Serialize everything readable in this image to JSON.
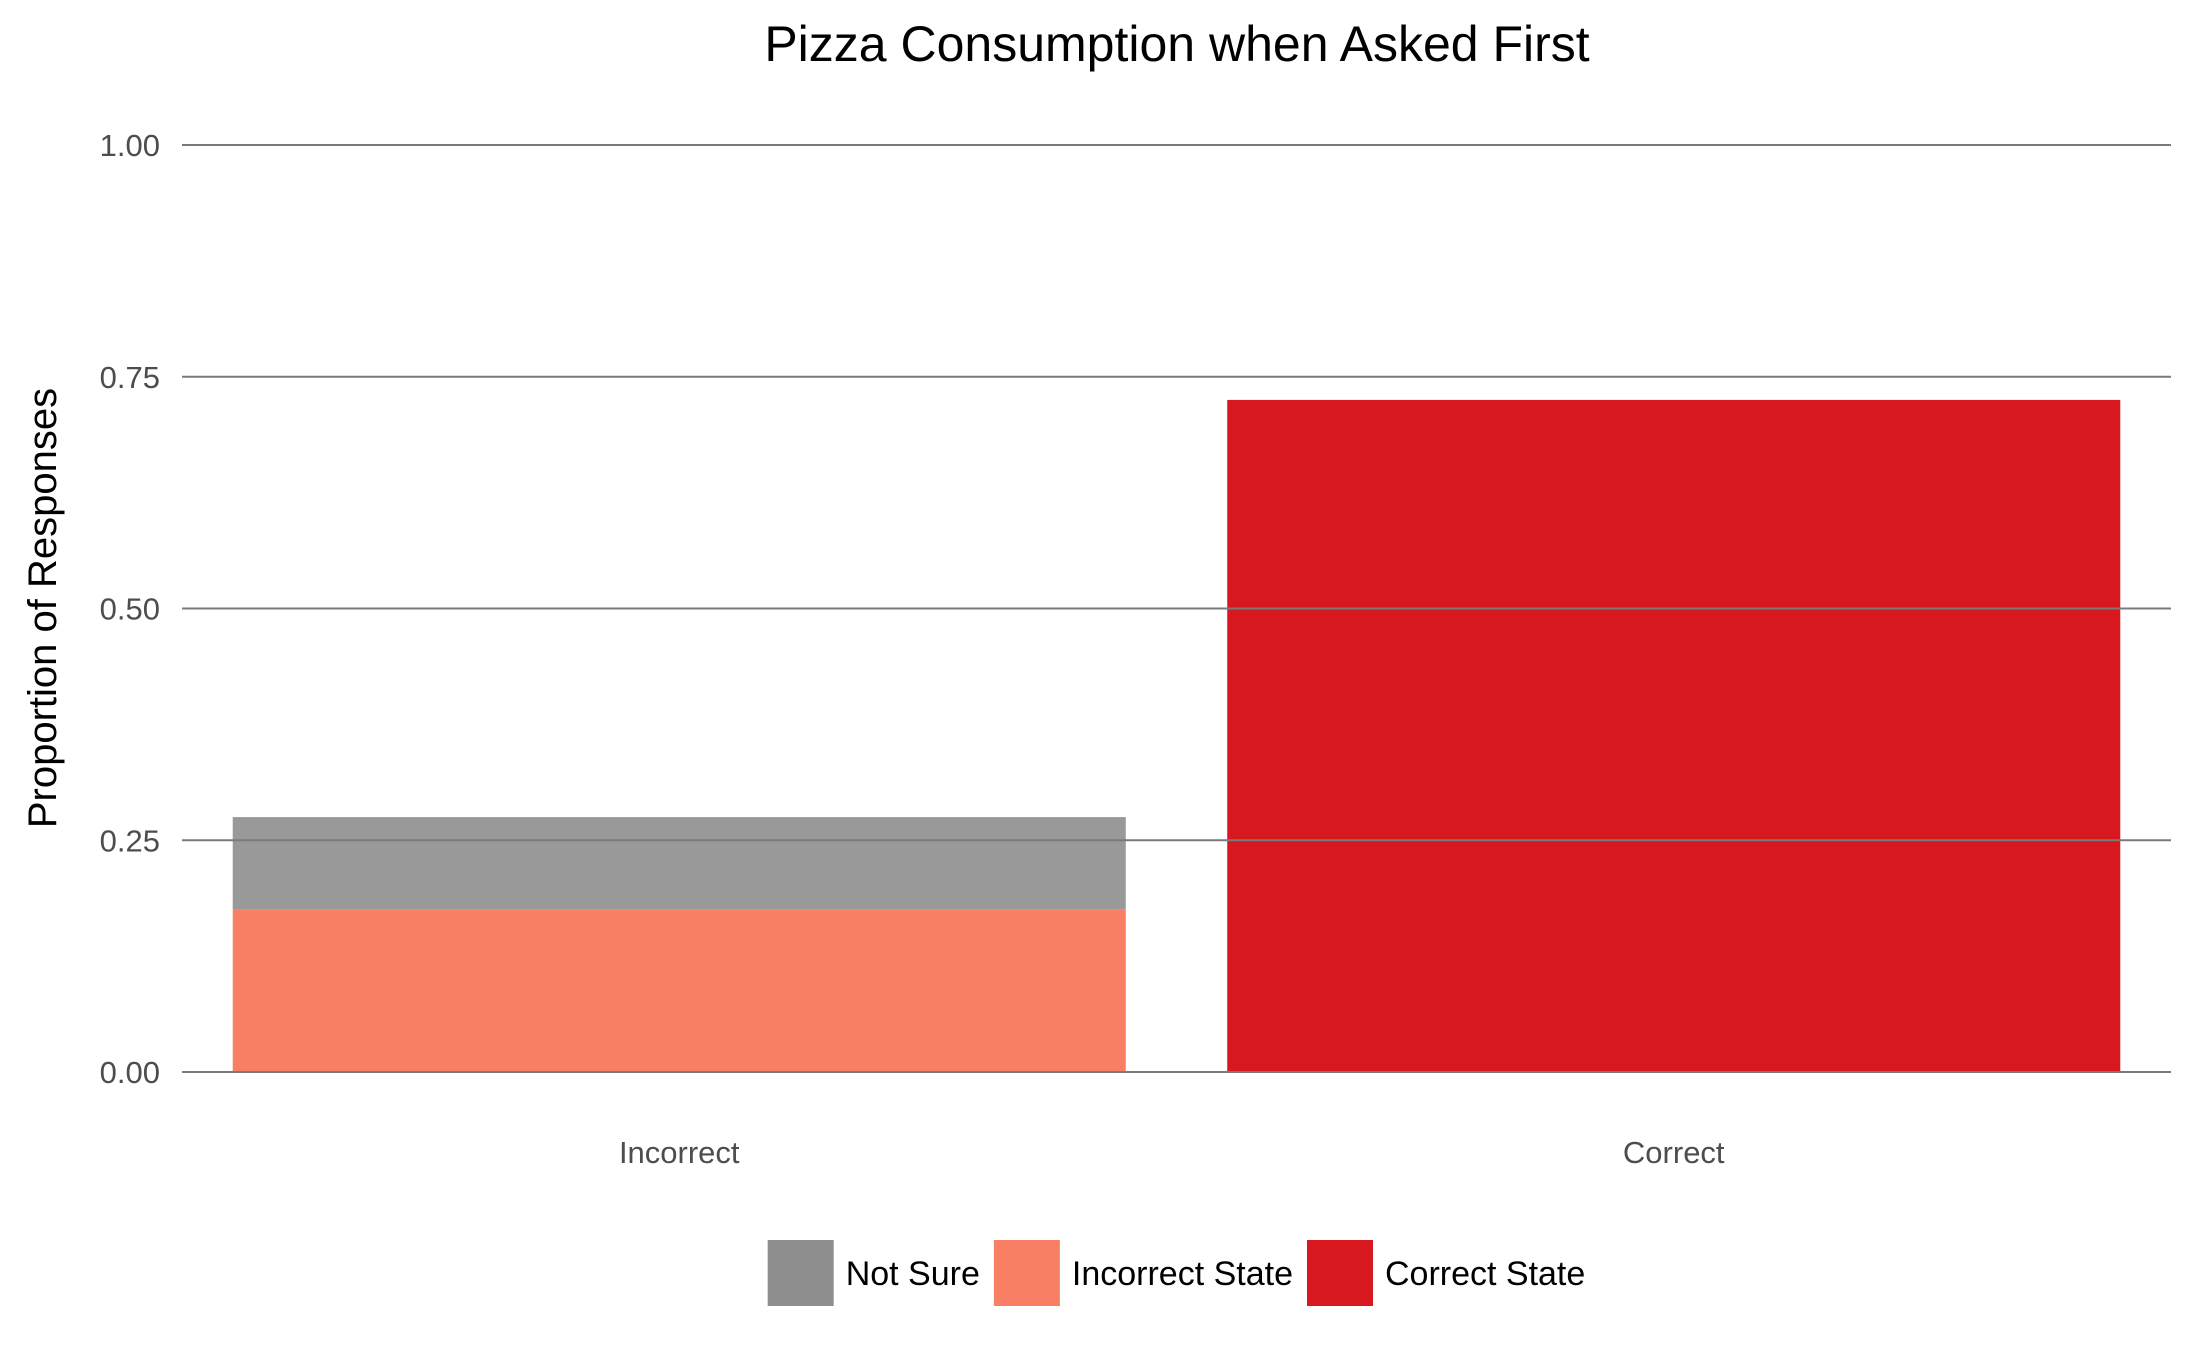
{
  "chart_data": {
    "type": "bar",
    "stacked": true,
    "title": "Pizza Consumption when Asked First",
    "xlabel": "",
    "ylabel": "Proportion of Responses",
    "categories": [
      "Incorrect",
      "Correct"
    ],
    "series": [
      {
        "name": "Incorrect State",
        "color": "#f87f63",
        "values": [
          0.175,
          0
        ]
      },
      {
        "name": "Not Sure",
        "color": "#999999",
        "values": [
          0.1,
          0
        ]
      },
      {
        "name": "Correct State",
        "color": "#d7191f",
        "values": [
          0,
          0.725
        ]
      }
    ],
    "ylim": [
      0,
      1
    ],
    "yticks": [
      0,
      0.25,
      0.5,
      0.75,
      1
    ],
    "ytick_labels": [
      "0.00",
      "0.25",
      "0.50",
      "0.75",
      "1.00"
    ],
    "grid": true,
    "legend": {
      "position": "bottom",
      "entries": [
        {
          "label": "Not Sure",
          "color": "#8e8e8e"
        },
        {
          "label": "Incorrect State",
          "color": "#f87f63"
        },
        {
          "label": "Correct State",
          "color": "#d7191f"
        }
      ]
    }
  }
}
